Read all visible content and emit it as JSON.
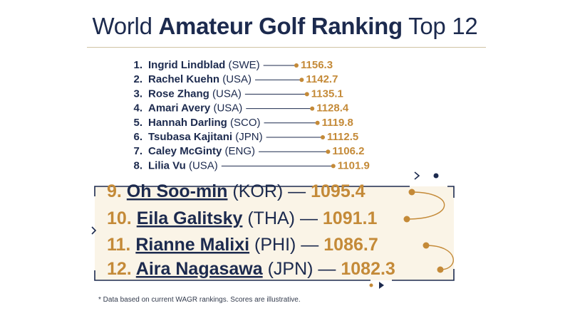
{
  "title_prefix": "World ",
  "title_bold": "Amateur Golf Ranking",
  "title_suffix": " Top 12",
  "footnote": "* Data based on current WAGR rankings. Scores are illustrative.",
  "colors": {
    "navy": "#1c2a4e",
    "gold": "#c48a38",
    "panel": "#faf4e7"
  },
  "chart_data": {
    "type": "bar",
    "title": "World Amateur Golf Ranking Top 12",
    "categories": [
      "Ingrid Lindblad",
      "Rachel Kuehn",
      "Rose Zhang",
      "Amari Avery",
      "Hannah Darling",
      "Tsubasa Kajitani",
      "Caley McGinty",
      "Lilia Vu",
      "Oh Soo-min",
      "Eila Galitsky",
      "Rianne Malixi",
      "Aira Nagasawa"
    ],
    "values": [
      1156.3,
      1142.7,
      1135.1,
      1128.4,
      1119.8,
      1112.5,
      1106.2,
      1101.9,
      1095.4,
      1091.1,
      1086.7,
      1082.3
    ],
    "rows": [
      {
        "rank": "1.",
        "name": "Ingrid Lindblad",
        "country": "(SWE)",
        "score": "1156.3"
      },
      {
        "rank": "2.",
        "name": "Rachel Kuehn",
        "country": "(USA)",
        "score": "1142.7"
      },
      {
        "rank": "3.",
        "name": "Rose Zhang",
        "country": "(USA)",
        "score": "1135.1"
      },
      {
        "rank": "4.",
        "name": "Amari Avery",
        "country": "(USA)",
        "score": "1128.4"
      },
      {
        "rank": "5.",
        "name": "Hannah Darling",
        "country": "(SCO)",
        "score": "1119.8"
      },
      {
        "rank": "6.",
        "name": "Tsubasa Kajitani",
        "country": "(JPN)",
        "score": "1112.5"
      },
      {
        "rank": "7.",
        "name": "Caley McGinty",
        "country": "(ENG)",
        "score": "1106.2"
      },
      {
        "rank": "8.",
        "name": "Lilia Vu",
        "country": "(USA)",
        "score": "1101.9"
      },
      {
        "rank": "9.",
        "name": "Oh Soo-min",
        "country": "(KOR)",
        "score": "1095.4"
      },
      {
        "rank": "10.",
        "name": "Eila Galitsky",
        "country": "(THA)",
        "score": "1091.1"
      },
      {
        "rank": "11.",
        "name": "Rianne Malixi",
        "country": "(PHI)",
        "score": "1086.7"
      },
      {
        "rank": "12.",
        "name": "Aira Nagasawa",
        "country": "(JPN)",
        "score": "1082.3"
      }
    ]
  }
}
